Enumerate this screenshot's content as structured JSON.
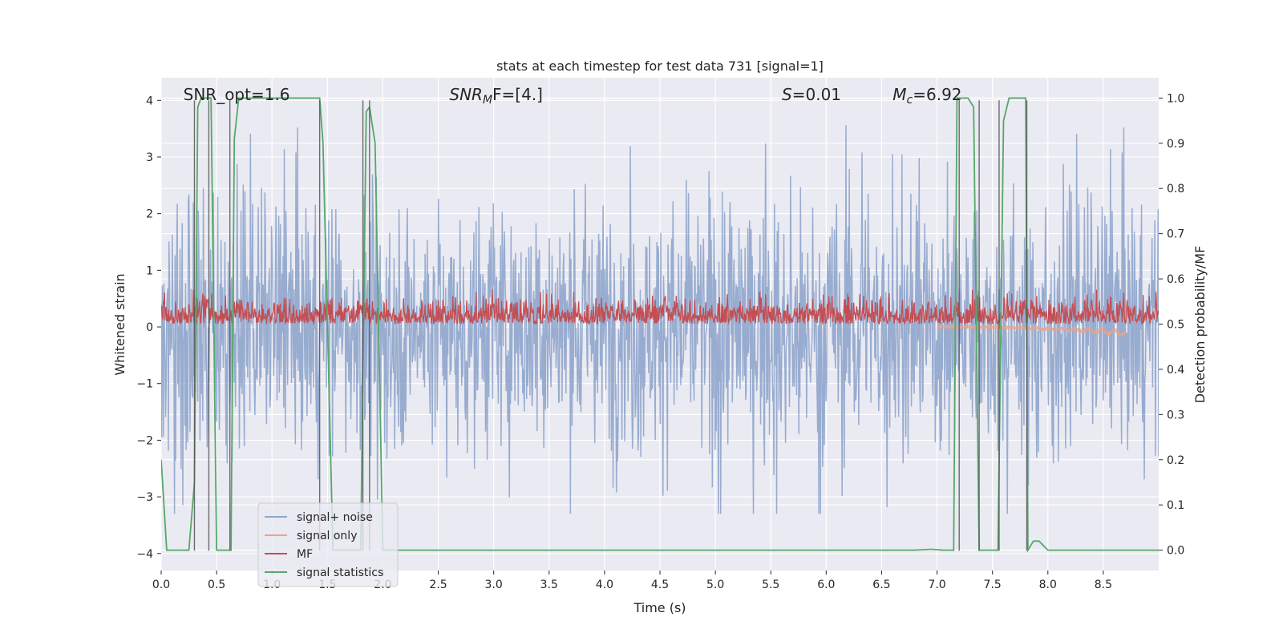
{
  "chart_data": {
    "type": "line",
    "title": "stats at each timestep for test data 731 [signal=1]",
    "xlabel": "Time (s)",
    "ylabel_left": "Whitened strain",
    "ylabel_right": "Detection probability/MF",
    "xlim": [
      0.0,
      9.0
    ],
    "ylim_left": [
      -4.3,
      4.4
    ],
    "ylim_right": [
      -0.045,
      1.045
    ],
    "x_ticks": [
      0.0,
      0.5,
      1.0,
      1.5,
      2.0,
      2.5,
      3.0,
      3.5,
      4.0,
      4.5,
      5.0,
      5.5,
      6.0,
      6.5,
      7.0,
      7.5,
      8.0,
      8.5
    ],
    "x_tick_labels": [
      "0.0",
      "0.5",
      "1.0",
      "1.5",
      "2.0",
      "2.5",
      "3.0",
      "3.5",
      "4.0",
      "4.5",
      "5.0",
      "5.5",
      "6.0",
      "6.5",
      "7.0",
      "7.5",
      "8.0",
      "8.5"
    ],
    "y_left_ticks": [
      -4,
      -3,
      -2,
      -1,
      0,
      1,
      2,
      3,
      4
    ],
    "y_left_tick_labels": [
      "−4",
      "−3",
      "−2",
      "−1",
      "0",
      "1",
      "2",
      "3",
      "4"
    ],
    "y_right_ticks": [
      0.0,
      0.1,
      0.2,
      0.3,
      0.4,
      0.5,
      0.6,
      0.7,
      0.8,
      0.9,
      1.0
    ],
    "y_right_tick_labels": [
      "0.0",
      "0.1",
      "0.2",
      "0.3",
      "0.4",
      "0.5",
      "0.6",
      "0.7",
      "0.8",
      "0.9",
      "1.0"
    ],
    "grid": true,
    "legend_position": "lower-left",
    "annotations": [
      {
        "text": "SNR_opt=1.6",
        "x": 0.2,
        "y": 4.1
      },
      {
        "text": "SNR",
        "sub": "M",
        "tail": "F=[4.]",
        "x": 2.6,
        "y": 4.1
      },
      {
        "text": "S",
        "tail": "=0.01",
        "x": 5.6,
        "y": 4.1
      },
      {
        "text": "M",
        "sub": "c",
        "tail": "=6.92",
        "x": 6.6,
        "y": 4.1
      }
    ],
    "series": [
      {
        "name": "signal+ noise",
        "color": "#8fa5cc",
        "axis": "left",
        "kind": "noise",
        "typical_range": [
          -2.3,
          2.3
        ],
        "peak_min": -3.3,
        "peak_max": 3.75,
        "n_points": 1800
      },
      {
        "name": "signal only",
        "color": "#e9a48a",
        "axis": "left",
        "kind": "chirp",
        "x_range": [
          7.0,
          8.7
        ],
        "y_range": [
          -0.15,
          0.0
        ]
      },
      {
        "name": "MF",
        "color": "#c44e52",
        "axis": "right",
        "kind": "noise",
        "typical_range": [
          0.5,
          0.56
        ],
        "peak_max": 0.62,
        "n_points": 1800
      },
      {
        "name": "signal statistics",
        "color": "#55a868",
        "axis": "right",
        "kind": "line",
        "x": [
          0.0,
          0.05,
          0.1,
          0.15,
          0.2,
          0.25,
          0.3,
          0.33,
          0.36,
          0.42,
          0.45,
          0.5,
          0.55,
          0.6,
          0.63,
          0.66,
          0.7,
          0.75,
          0.8,
          1.0,
          1.2,
          1.4,
          1.43,
          1.46,
          1.55,
          1.65,
          1.75,
          1.8,
          1.85,
          1.88,
          1.93,
          2.0,
          2.05,
          2.5,
          3.0,
          4.0,
          5.0,
          6.0,
          6.8,
          6.95,
          7.05,
          7.15,
          7.18,
          7.22,
          7.28,
          7.33,
          7.38,
          7.42,
          7.48,
          7.55,
          7.6,
          7.65,
          7.72,
          7.8,
          7.82,
          7.87,
          7.92,
          8.0,
          8.1,
          8.3,
          8.6,
          9.0
        ],
        "y": [
          0.2,
          0.0,
          0.0,
          0.0,
          0.0,
          0.0,
          0.15,
          0.98,
          1.0,
          1.0,
          1.0,
          0.0,
          0.0,
          0.0,
          0.0,
          0.91,
          1.0,
          1.0,
          1.0,
          1.0,
          1.0,
          1.0,
          1.0,
          0.9,
          0.0,
          0.0,
          0.0,
          0.0,
          0.97,
          0.98,
          0.9,
          0.0,
          0.0,
          0.0,
          0.0,
          0.0,
          0.0,
          0.0,
          0.0,
          0.002,
          0.0,
          0.0,
          1.0,
          1.0,
          1.0,
          0.98,
          0.0,
          0.0,
          0.0,
          0.0,
          0.95,
          1.0,
          1.0,
          1.0,
          0.0,
          0.02,
          0.02,
          0.0,
          0.0,
          0.0,
          0.0,
          0.0
        ]
      },
      {
        "name": "event markers",
        "color": "#555555",
        "axis": "left",
        "kind": "vlines",
        "legend": false,
        "x": [
          0.3,
          0.43,
          0.62,
          1.43,
          1.82,
          1.88,
          7.2,
          7.38,
          7.56,
          7.81
        ]
      }
    ]
  }
}
